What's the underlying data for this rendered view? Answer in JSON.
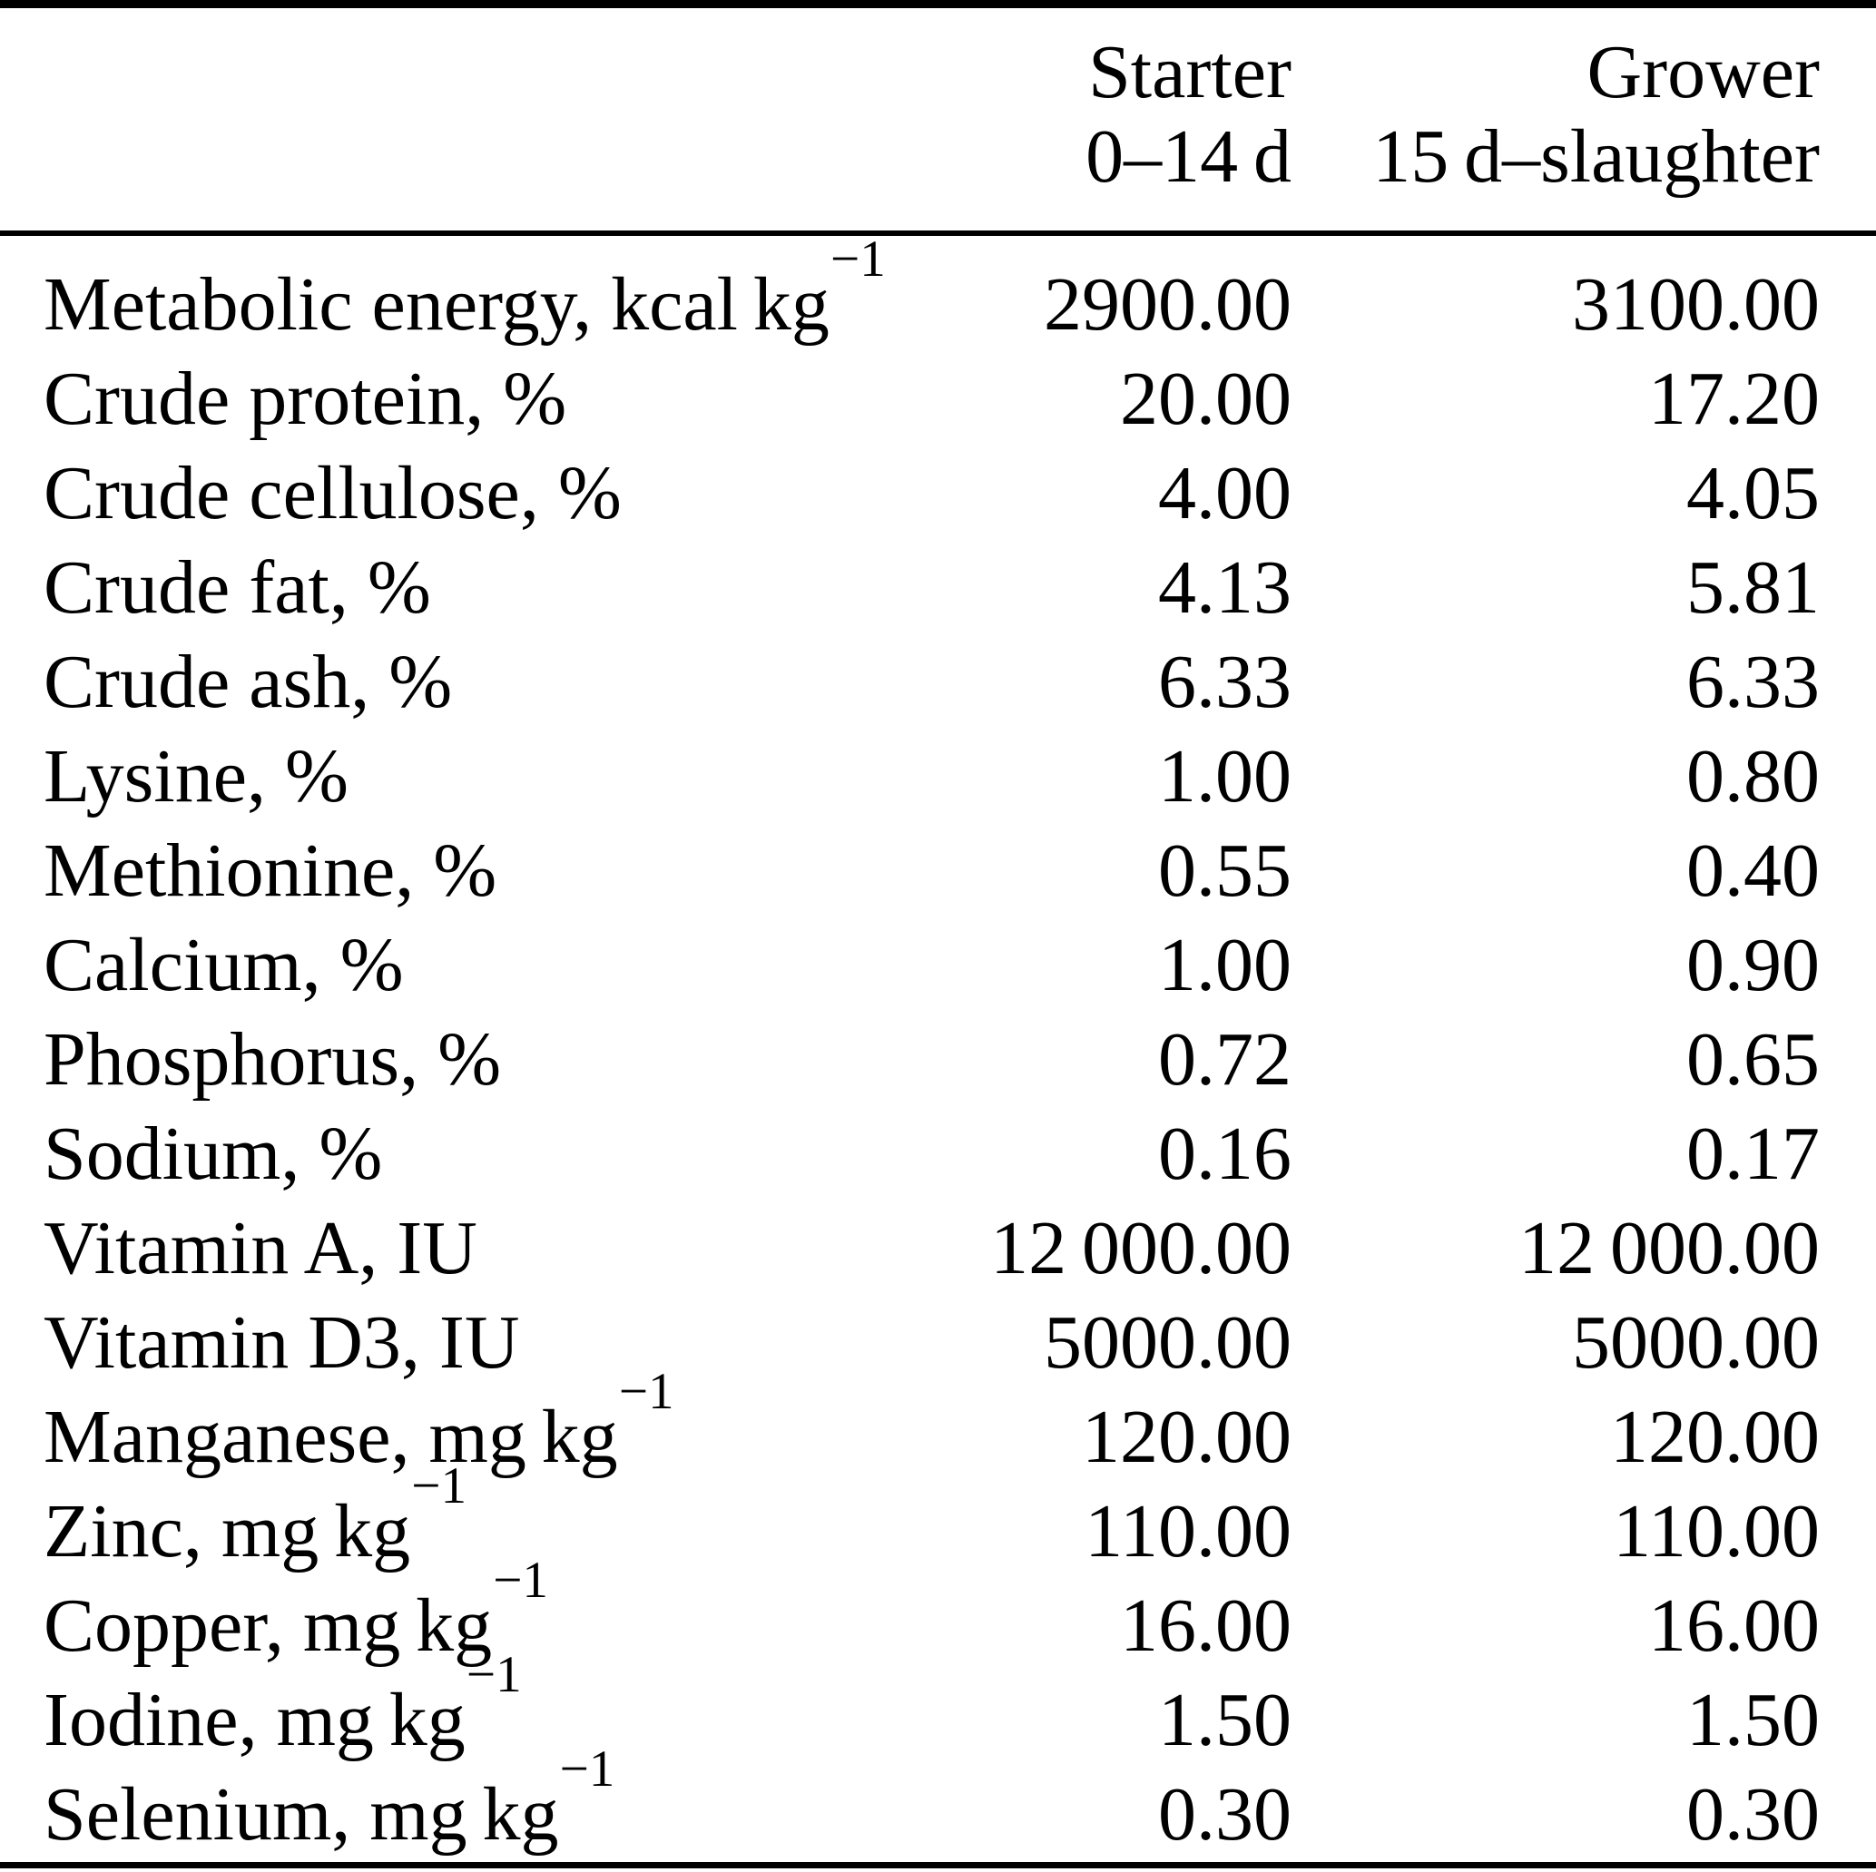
{
  "table": {
    "background_color": "#ffffff",
    "text_color": "#000000",
    "rule_color": "#000000",
    "columns": [
      {
        "key": "starter",
        "line1": "Starter",
        "line2": "0–14 d"
      },
      {
        "key": "grower",
        "line1": "Grower",
        "line2": "15 d–slaughter"
      }
    ],
    "rows": [
      {
        "label": "Metabolic energy, kcal kg",
        "superscript": "−1",
        "starter": "2900.00",
        "grower": "3100.00"
      },
      {
        "label": "Crude protein, %",
        "superscript": "",
        "starter": "20.00",
        "grower": "17.20"
      },
      {
        "label": "Crude cellulose, %",
        "superscript": "",
        "starter": "4.00",
        "grower": "4.05"
      },
      {
        "label": "Crude fat, %",
        "superscript": "",
        "starter": "4.13",
        "grower": "5.81"
      },
      {
        "label": "Crude ash, %",
        "superscript": "",
        "starter": "6.33",
        "grower": "6.33"
      },
      {
        "label": "Lysine, %",
        "superscript": "",
        "starter": "1.00",
        "grower": "0.80"
      },
      {
        "label": "Methionine, %",
        "superscript": "",
        "starter": "0.55",
        "grower": "0.40"
      },
      {
        "label": "Calcium, %",
        "superscript": "",
        "starter": "1.00",
        "grower": "0.90"
      },
      {
        "label": "Phosphorus, %",
        "superscript": "",
        "starter": "0.72",
        "grower": "0.65"
      },
      {
        "label": "Sodium, %",
        "superscript": "",
        "starter": "0.16",
        "grower": "0.17"
      },
      {
        "label": "Vitamin A, IU",
        "superscript": "",
        "starter": "12 000.00",
        "grower": "12 000.00"
      },
      {
        "label": "Vitamin D3, IU",
        "superscript": "",
        "starter": "5000.00",
        "grower": "5000.00"
      },
      {
        "label": "Manganese, mg kg",
        "superscript": "−1",
        "starter": "120.00",
        "grower": "120.00"
      },
      {
        "label": "Zinc, mg kg",
        "superscript": "−1",
        "starter": "110.00",
        "grower": "110.00"
      },
      {
        "label": "Copper, mg kg",
        "superscript": "−1",
        "starter": "16.00",
        "grower": "16.00"
      },
      {
        "label": "Iodine, mg kg",
        "superscript": "−1",
        "starter": "1.50",
        "grower": "1.50"
      },
      {
        "label": "Selenium, mg kg",
        "superscript": "−1",
        "starter": "0.30",
        "grower": "0.30"
      }
    ]
  }
}
